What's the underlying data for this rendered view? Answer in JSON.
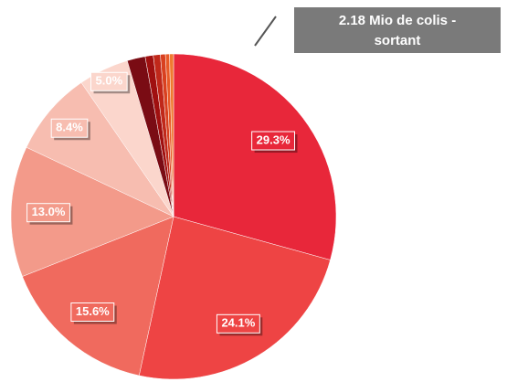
{
  "chart_data": {
    "type": "pie",
    "annotation": [
      "2.18 Mio de colis -",
      "sortant"
    ],
    "values": [
      29.3,
      24.1,
      15.6,
      13.0,
      8.4,
      5.0,
      1.8,
      0.8,
      0.7,
      0.5,
      0.4,
      0.4
    ],
    "value_labels": [
      "29.3%",
      "24.1%",
      "15.6%",
      "13.0%",
      "8.4%",
      "5.0%",
      null,
      null,
      null,
      null,
      null,
      null
    ],
    "colors": [
      "#e8273a",
      "#ee4444",
      "#f06a5e",
      "#f39a8a",
      "#f7bdb0",
      "#fbd6cc",
      "#7a0c14",
      "#a01010",
      "#c0281a",
      "#d84020",
      "#e85a28",
      "#f07a30"
    ],
    "start_angle": 0,
    "direction": "clockwise"
  }
}
